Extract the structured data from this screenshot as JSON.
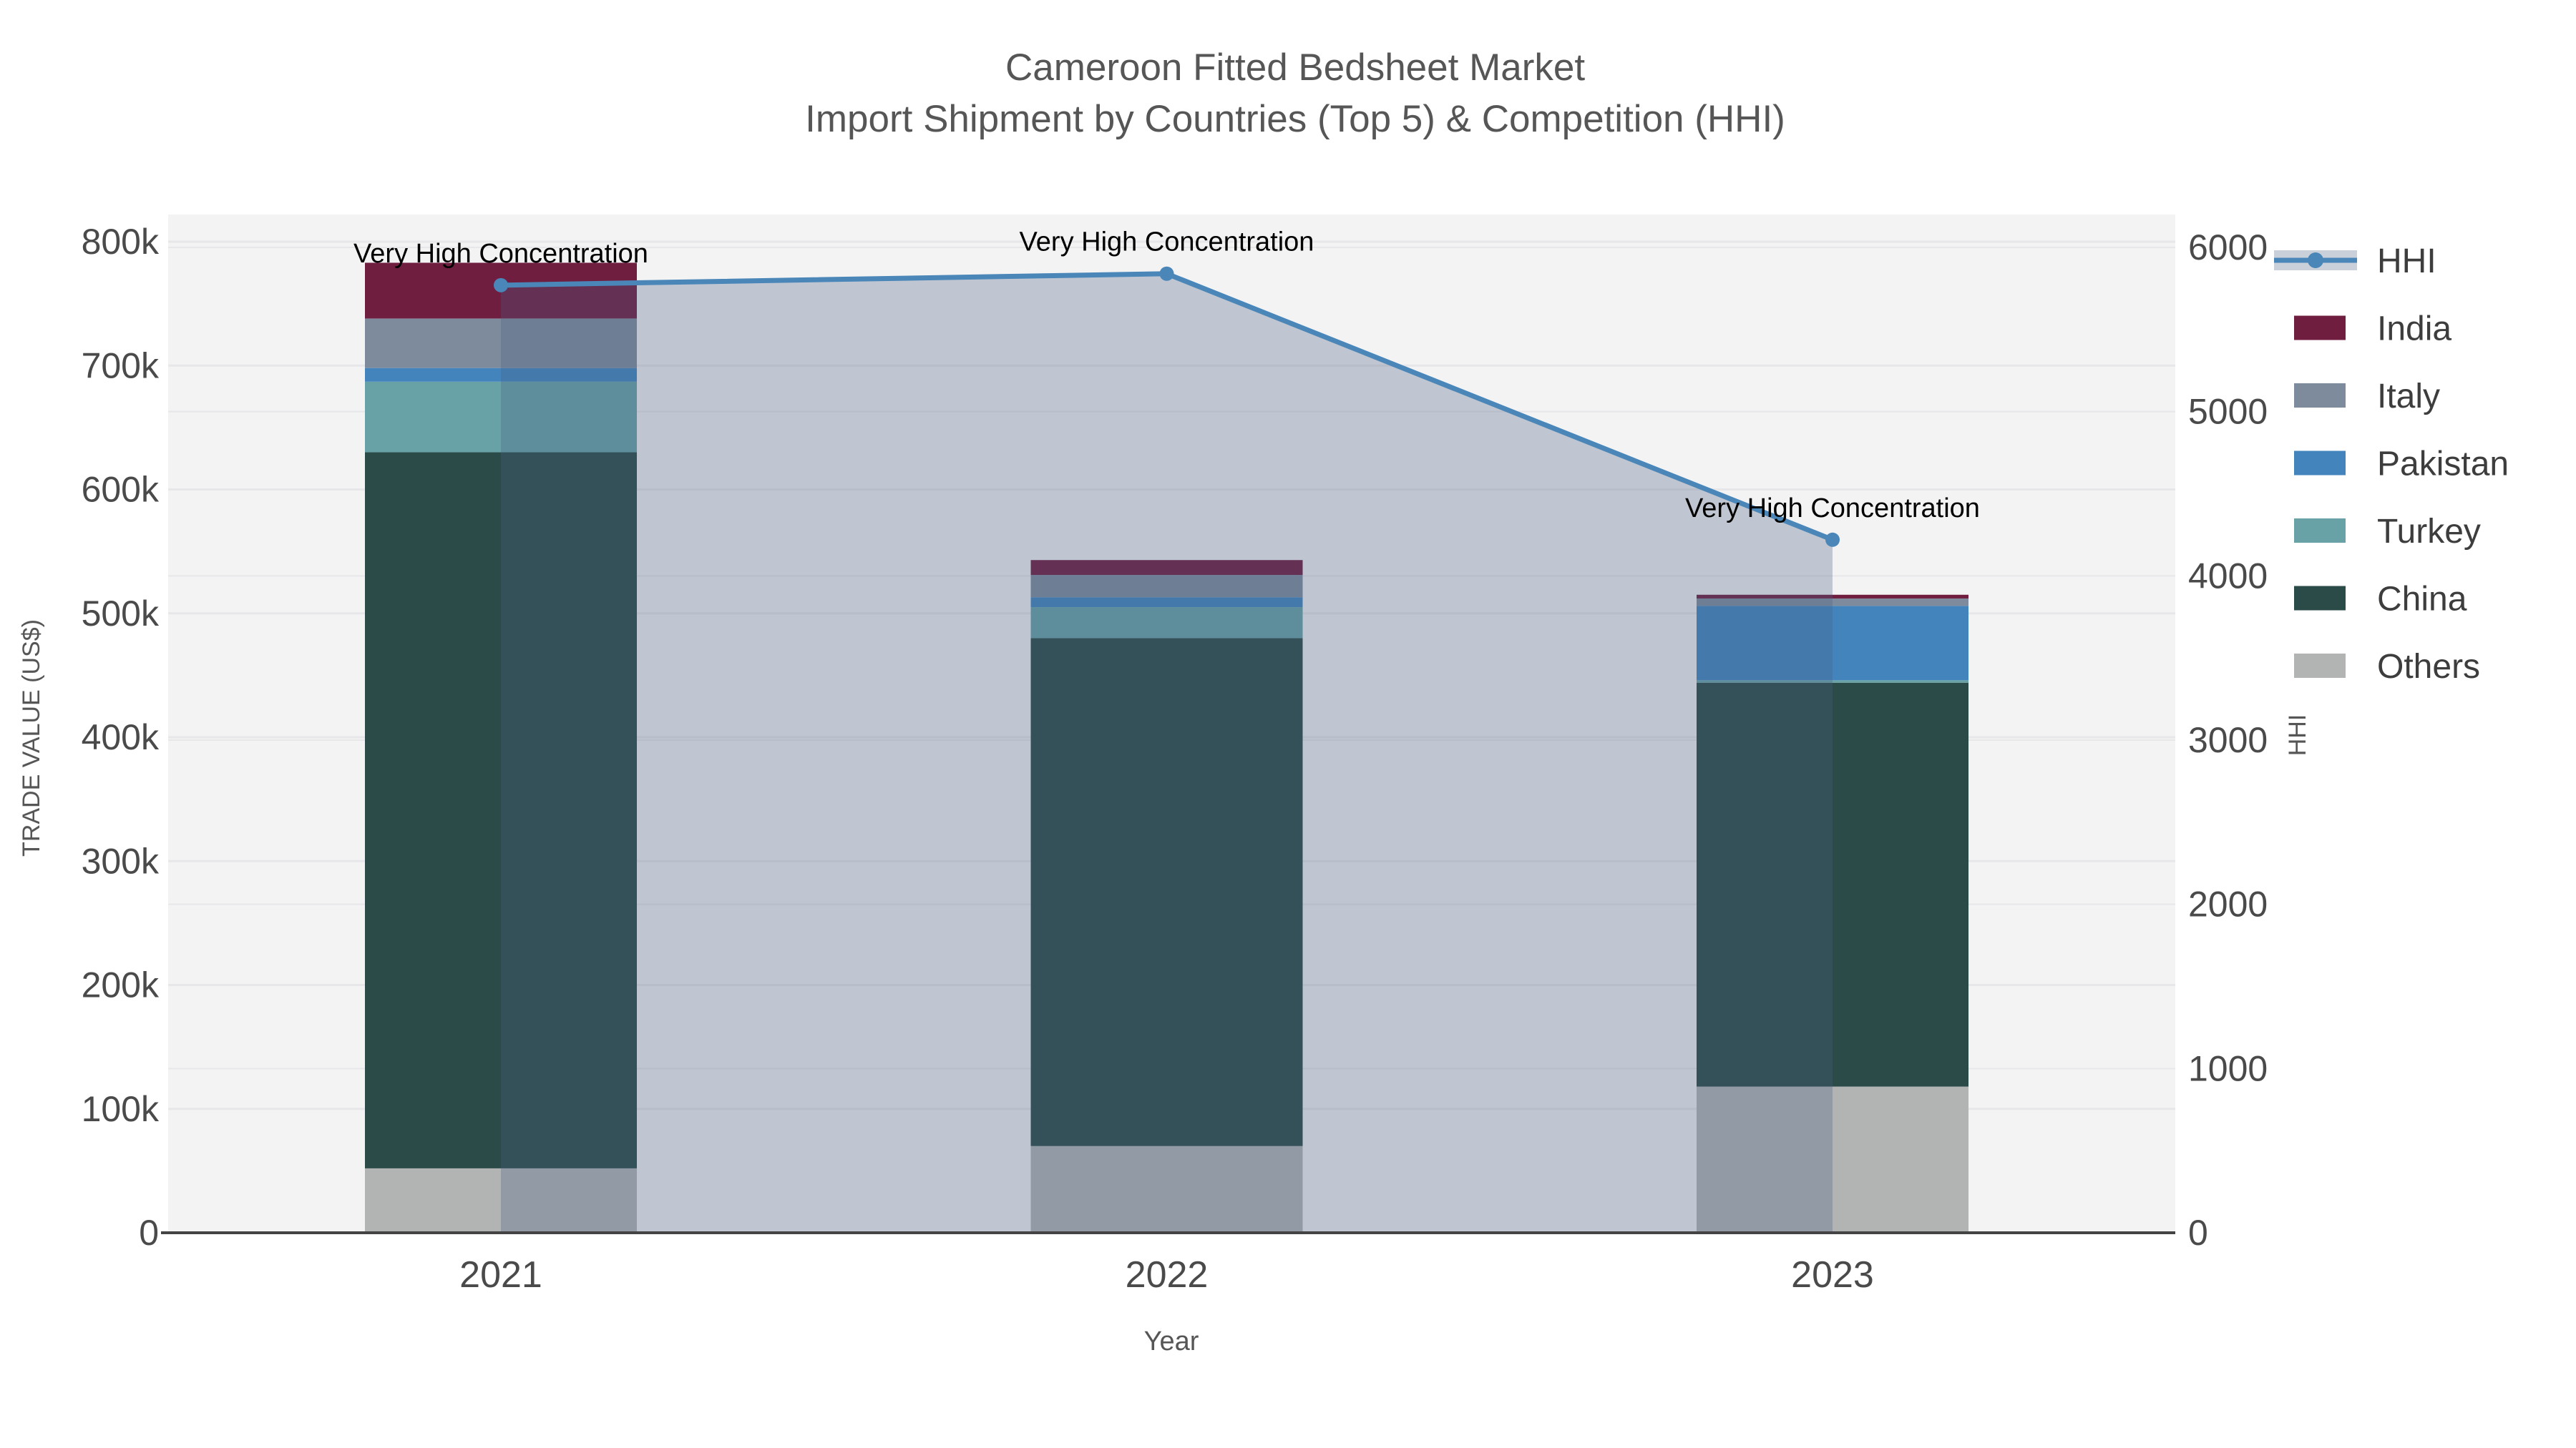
{
  "title": {
    "line1": "Cameroon Fitted Bedsheet Market",
    "line2": "Import Shipment by Countries (Top 5) & Competition (HHI)"
  },
  "axes": {
    "x": {
      "title": "Year",
      "ticks": [
        "2021",
        "2022",
        "2023"
      ]
    },
    "y_left": {
      "title": "TRADE VALUE (US$)",
      "ticks": [
        "0",
        "100k",
        "200k",
        "300k",
        "400k",
        "500k",
        "600k",
        "700k",
        "800k"
      ],
      "range": [
        0,
        800000
      ]
    },
    "y_right": {
      "title": "HHI",
      "ticks": [
        "0",
        "1000",
        "2000",
        "3000",
        "4000",
        "5000",
        "6000"
      ],
      "range": [
        0,
        6000
      ]
    }
  },
  "legend": {
    "items": [
      {
        "label": "HHI",
        "type": "line",
        "color": "#4a86b8",
        "band_color": "#c9d0da"
      },
      {
        "label": "India",
        "type": "swatch",
        "color": "#701e40"
      },
      {
        "label": "Italy",
        "type": "swatch",
        "color": "#7d8b9d"
      },
      {
        "label": "Pakistan",
        "type": "swatch",
        "color": "#4384bd"
      },
      {
        "label": "Turkey",
        "type": "swatch",
        "color": "#68a2a7"
      },
      {
        "label": "China",
        "type": "swatch",
        "color": "#2b4b48"
      },
      {
        "label": "Others",
        "type": "swatch",
        "color": "#b2b3b3"
      }
    ]
  },
  "annotations": [
    {
      "year": "2021",
      "text": "Very High Concentration"
    },
    {
      "year": "2022",
      "text": "Very High Concentration"
    },
    {
      "year": "2023",
      "text": "Very High Concentration"
    }
  ],
  "colors": {
    "plot_background": "#f3f3f4",
    "gridline": "#e7e7e9",
    "axis_line": "#444444",
    "hhi_line": "#4a86b8",
    "hhi_area": "rgba(72,96,134,0.30)"
  },
  "chart_data": {
    "type": "bar+line",
    "title": "Cameroon Fitted Bedsheet Market — Import Shipment by Countries (Top 5) & Competition (HHI)",
    "categories": [
      "2021",
      "2022",
      "2023"
    ],
    "stack_order_bottom_to_top": [
      "Others",
      "China",
      "Turkey",
      "Pakistan",
      "Italy",
      "India"
    ],
    "series": [
      {
        "name": "India",
        "color": "#701e40",
        "values": [
          45000,
          12000,
          3000
        ]
      },
      {
        "name": "Italy",
        "color": "#7d8b9d",
        "values": [
          40000,
          18000,
          6000
        ]
      },
      {
        "name": "Pakistan",
        "color": "#4384bd",
        "values": [
          11000,
          8000,
          60000
        ]
      },
      {
        "name": "Turkey",
        "color": "#68a2a7",
        "values": [
          57000,
          25000,
          2000
        ]
      },
      {
        "name": "China",
        "color": "#2b4b48",
        "values": [
          578000,
          410000,
          326000
        ]
      },
      {
        "name": "Others",
        "color": "#b2b3b3",
        "values": [
          52000,
          70000,
          118000
        ]
      }
    ],
    "line_series": {
      "name": "HHI",
      "axis": "right",
      "color": "#4a86b8",
      "fill": "rgba(72,96,134,0.30)",
      "values": [
        5770,
        5840,
        4220
      ]
    },
    "xlabel": "Year",
    "ylabel_left": "TRADE VALUE (US$)",
    "ylabel_right": "HHI",
    "ylim_left": [
      0,
      800000
    ],
    "ylim_right": [
      0,
      6000
    ],
    "grid": true,
    "legend_position": "right"
  }
}
